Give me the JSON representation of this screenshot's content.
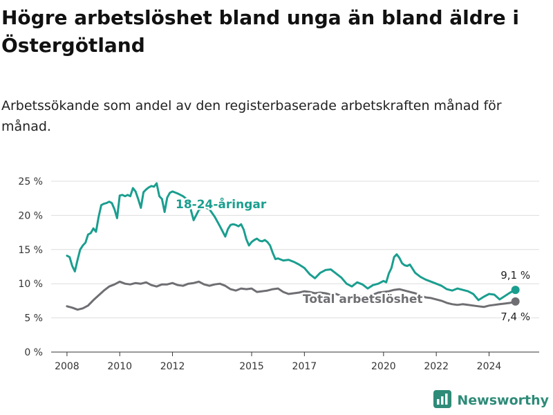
{
  "title": "Högre arbetslöshet bland unga än bland äldre i Östergötland",
  "subtitle": "Arbetssökande som andel av den registerbaserade arbetskraften månad för månad.",
  "brand": {
    "name": "Newsworthy",
    "icon": "bar-chart-logo-icon",
    "color": "#2e8b78"
  },
  "chart_data": {
    "type": "line",
    "title": "Högre arbetslöshet bland unga än bland äldre i Östergötland",
    "subtitle": "Arbetssökande som andel av den registerbaserade arbetskraften månad för månad.",
    "xlabel": "",
    "ylabel": "",
    "xlim": [
      2007.4,
      2025.9
    ],
    "ylim": [
      0,
      25
    ],
    "y_ticks": [
      0,
      5,
      10,
      15,
      20,
      25
    ],
    "y_tick_labels": [
      "0 %",
      "5 %",
      "10 %",
      "15 %",
      "20 %",
      "25 %"
    ],
    "x_ticks": [
      2008,
      2010,
      2012,
      2015,
      2017,
      2020,
      2022,
      2024
    ],
    "x_tick_labels": [
      "2008",
      "2010",
      "2012",
      "2015",
      "2017",
      "2020",
      "2022",
      "2024"
    ],
    "grid": "horizontal",
    "legend": "none",
    "series": [
      {
        "name": "18-24-åringar",
        "label": "18-24-åringar",
        "color": "#1a9e8f",
        "end_label": "9,1 %",
        "x": [
          2008.0,
          2008.1,
          2008.2,
          2008.3,
          2008.4,
          2008.5,
          2008.6,
          2008.7,
          2008.8,
          2008.9,
          2009.0,
          2009.1,
          2009.2,
          2009.3,
          2009.4,
          2009.5,
          2009.6,
          2009.7,
          2009.8,
          2009.9,
          2010.0,
          2010.1,
          2010.2,
          2010.3,
          2010.4,
          2010.5,
          2010.6,
          2010.7,
          2010.8,
          2010.9,
          2011.0,
          2011.1,
          2011.2,
          2011.3,
          2011.4,
          2011.5,
          2011.6,
          2011.7,
          2011.8,
          2011.9,
          2012.0,
          2012.2,
          2012.4,
          2012.6,
          2012.8,
          2013.0,
          2013.2,
          2013.4,
          2013.6,
          2013.8,
          2014.0,
          2014.1,
          2014.2,
          2014.3,
          2014.4,
          2014.5,
          2014.6,
          2014.7,
          2014.8,
          2014.9,
          2015.0,
          2015.1,
          2015.2,
          2015.3,
          2015.4,
          2015.5,
          2015.6,
          2015.7,
          2015.8,
          2015.9,
          2016.0,
          2016.2,
          2016.4,
          2016.6,
          2016.8,
          2017.0,
          2017.2,
          2017.4,
          2017.6,
          2017.8,
          2018.0,
          2018.2,
          2018.4,
          2018.6,
          2018.8,
          2019.0,
          2019.2,
          2019.4,
          2019.6,
          2019.8,
          2020.0,
          2020.1,
          2020.2,
          2020.3,
          2020.4,
          2020.5,
          2020.6,
          2020.7,
          2020.8,
          2020.9,
          2021.0,
          2021.2,
          2021.4,
          2021.6,
          2021.8,
          2022.0,
          2022.2,
          2022.4,
          2022.6,
          2022.8,
          2023.0,
          2023.2,
          2023.4,
          2023.6,
          2023.8,
          2024.0,
          2024.2,
          2024.4,
          2024.6,
          2024.8,
          2025.0
        ],
        "y": [
          14.1,
          13.9,
          12.6,
          11.8,
          13.5,
          15.0,
          15.6,
          16.0,
          17.2,
          17.4,
          18.1,
          17.6,
          19.8,
          21.5,
          21.7,
          21.8,
          22.0,
          21.8,
          20.9,
          19.6,
          22.9,
          23.0,
          22.8,
          23.0,
          22.8,
          24.0,
          23.5,
          22.4,
          21.1,
          23.4,
          23.8,
          24.1,
          24.3,
          24.2,
          24.7,
          22.8,
          22.4,
          20.5,
          22.6,
          23.3,
          23.5,
          23.2,
          22.8,
          22.2,
          19.3,
          20.8,
          21.2,
          20.9,
          19.8,
          18.4,
          16.9,
          18.0,
          18.6,
          18.7,
          18.6,
          18.4,
          18.7,
          17.9,
          16.5,
          15.6,
          16.1,
          16.4,
          16.6,
          16.3,
          16.2,
          16.4,
          16.1,
          15.6,
          14.5,
          13.6,
          13.7,
          13.4,
          13.5,
          13.2,
          12.8,
          12.3,
          11.4,
          10.8,
          11.6,
          12.0,
          12.1,
          11.5,
          10.9,
          10.0,
          9.6,
          10.2,
          9.9,
          9.3,
          9.8,
          10.0,
          10.4,
          10.2,
          11.5,
          12.3,
          13.9,
          14.3,
          13.8,
          13.0,
          12.7,
          12.6,
          12.8,
          11.6,
          11.0,
          10.6,
          10.3,
          10.0,
          9.7,
          9.2,
          9.0,
          9.3,
          9.1,
          8.9,
          8.5,
          7.6,
          8.1,
          8.5,
          8.4,
          7.7,
          8.2,
          8.7,
          9.1
        ]
      },
      {
        "name": "Total arbetslöshet",
        "label": "Total arbetslöshet",
        "color": "#6e6e73",
        "end_label": "7,4 %",
        "x": [
          2008.0,
          2008.2,
          2008.4,
          2008.6,
          2008.8,
          2009.0,
          2009.2,
          2009.4,
          2009.6,
          2009.8,
          2010.0,
          2010.2,
          2010.4,
          2010.6,
          2010.8,
          2011.0,
          2011.2,
          2011.4,
          2011.6,
          2011.8,
          2012.0,
          2012.2,
          2012.4,
          2012.6,
          2012.8,
          2013.0,
          2013.2,
          2013.4,
          2013.6,
          2013.8,
          2014.0,
          2014.2,
          2014.4,
          2014.6,
          2014.8,
          2015.0,
          2015.2,
          2015.4,
          2015.6,
          2015.8,
          2016.0,
          2016.2,
          2016.4,
          2016.6,
          2016.8,
          2017.0,
          2017.2,
          2017.4,
          2017.6,
          2017.8,
          2018.0,
          2018.2,
          2018.4,
          2018.6,
          2018.8,
          2019.0,
          2019.2,
          2019.4,
          2019.6,
          2019.8,
          2020.0,
          2020.2,
          2020.4,
          2020.6,
          2020.8,
          2021.0,
          2021.2,
          2021.4,
          2021.6,
          2021.8,
          2022.0,
          2022.2,
          2022.4,
          2022.6,
          2022.8,
          2023.0,
          2023.2,
          2023.4,
          2023.6,
          2023.8,
          2024.0,
          2024.2,
          2024.4,
          2024.6,
          2024.8,
          2025.0
        ],
        "y": [
          6.7,
          6.5,
          6.2,
          6.4,
          6.8,
          7.6,
          8.3,
          9.0,
          9.6,
          9.9,
          10.3,
          10.0,
          9.9,
          10.1,
          10.0,
          10.2,
          9.8,
          9.6,
          9.9,
          9.9,
          10.1,
          9.8,
          9.7,
          10.0,
          10.1,
          10.3,
          9.9,
          9.7,
          9.9,
          10.0,
          9.7,
          9.2,
          9.0,
          9.3,
          9.2,
          9.3,
          8.8,
          8.9,
          9.0,
          9.2,
          9.3,
          8.8,
          8.5,
          8.6,
          8.7,
          8.9,
          8.8,
          8.6,
          8.7,
          8.6,
          8.4,
          8.5,
          8.2,
          8.0,
          8.2,
          8.3,
          8.0,
          8.1,
          8.4,
          8.7,
          8.8,
          8.9,
          9.1,
          9.2,
          9.0,
          8.8,
          8.6,
          8.3,
          8.0,
          7.9,
          7.7,
          7.5,
          7.2,
          7.0,
          6.9,
          7.0,
          6.9,
          6.8,
          6.7,
          6.6,
          6.8,
          6.9,
          7.0,
          7.1,
          7.2,
          7.4
        ]
      }
    ]
  }
}
